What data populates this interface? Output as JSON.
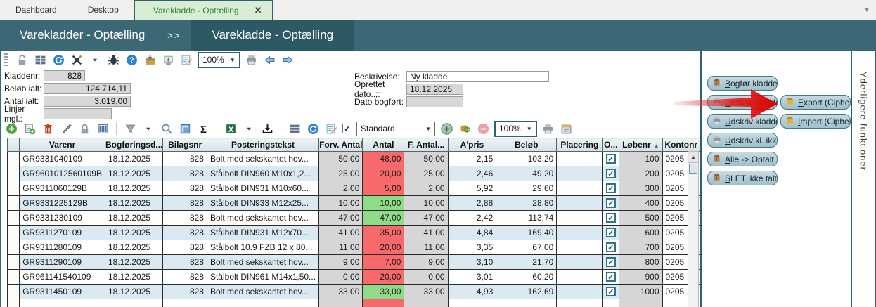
{
  "tabs": [
    {
      "label": "Dashboard",
      "active": false
    },
    {
      "label": "Desktop",
      "active": false
    },
    {
      "label": "Varekladde - Optælling",
      "active": true,
      "close_label": "✕"
    }
  ],
  "breadcrumb": {
    "items": [
      "Varekladder - Optælling",
      "Varekladde - Optælling"
    ],
    "separator": ">>"
  },
  "toolbar_top": {
    "icons": [
      "unlock-icon",
      "table-icon",
      "refresh-icon",
      "tools-icon",
      "dropdown-caret-icon",
      "bug-icon",
      "help-icon",
      "archive-icon",
      "snapshot-icon",
      "edit-notes-icon"
    ],
    "zoom_value": "100%",
    "icons_after": [
      "print-icon",
      "nav-back-icon",
      "nav-forward-icon"
    ]
  },
  "form": {
    "left": [
      {
        "label": "Kladdenr:",
        "value": "828"
      },
      {
        "label": "Beløb ialt:",
        "value": "124.714,11"
      },
      {
        "label": "Antal ialt:",
        "value": "3.019,00"
      },
      {
        "label": "Linjer mgl.:",
        "value": ""
      }
    ],
    "right": [
      {
        "label": "Beskrivelse:",
        "value": "Ny kladde"
      },
      {
        "label": "Oprettet dato..;:",
        "value": "18.12.2025"
      },
      {
        "label": "Dato bogført:",
        "value": ""
      }
    ]
  },
  "toolbar_grid": {
    "icons_group1": [
      "add-icon",
      "copy-row-icon",
      "delete-icon",
      "edit-pen-icon",
      "lock-icon",
      "columns-icon"
    ],
    "icons_group2": [
      "filter-icon",
      "dropdown-caret-icon",
      "search-icon",
      "select-area-icon",
      "sum-icon"
    ],
    "icons_group3": [
      "excel-icon",
      "dropdown-caret-icon",
      "export-tray-icon"
    ],
    "icons_group4": [
      "table-icon",
      "refresh-icon",
      "edit-notes-icon"
    ],
    "checkbox_checked": "✓",
    "layout_preset": "Standard",
    "icons_group5": [
      "add-circle-icon",
      "db-refresh-icon",
      "remove-circle-icon"
    ],
    "zoom_value": "100%",
    "icons_group6": [
      "print-icon",
      "calendar-icon"
    ]
  },
  "table": {
    "columns": [
      {
        "key": "sel",
        "label": "",
        "type": "indic",
        "align": "ac"
      },
      {
        "key": "varenr",
        "label": "Varenr",
        "type": "stripe",
        "align": "al"
      },
      {
        "key": "dato",
        "label": "Bogføringsd...",
        "type": "stripe",
        "align": "al"
      },
      {
        "key": "bilagsnr",
        "label": "Bilagsnr",
        "type": "stripe",
        "align": "ar"
      },
      {
        "key": "tekst",
        "label": "Posteringstekst",
        "type": "stripe",
        "align": "al"
      },
      {
        "key": "forv",
        "label": "Forv. Antal",
        "type": "gray",
        "align": "ar"
      },
      {
        "key": "antal",
        "label": "Antal",
        "type": "antal",
        "align": "ar"
      },
      {
        "key": "fantal",
        "label": "F. Antal...",
        "type": "gray",
        "align": "ar"
      },
      {
        "key": "apris",
        "label": "A'pris",
        "type": "stripe",
        "align": "ar"
      },
      {
        "key": "belob",
        "label": "Beløb",
        "type": "stripe",
        "align": "ar"
      },
      {
        "key": "placering",
        "label": "Placering",
        "type": "stripe",
        "align": "al"
      },
      {
        "key": "opt",
        "label": "O...",
        "type": "check",
        "align": "ac"
      },
      {
        "key": "lobenr",
        "label": "Løbenr",
        "type": "gray",
        "align": "ar",
        "sorted": "asc"
      },
      {
        "key": "kontonr",
        "label": "Kontonr",
        "type": "white",
        "align": "al"
      }
    ],
    "sort_glyph": "▲",
    "check_glyph": "✓",
    "rows": [
      {
        "varenr": "GR9331040109",
        "dato": "18.12.2025",
        "bilagsnr": "828",
        "tekst": "Bolt med sekskantet hov...",
        "forv": "50,00",
        "antal": "48,00",
        "state": "mismatch",
        "fantal": "50,00",
        "apris": "2,15",
        "belob": "103,20",
        "placering": "",
        "opt": true,
        "lobenr": "100",
        "kontonr": "0205"
      },
      {
        "varenr": "GR9601012560109B",
        "dato": "18.12.2025",
        "bilagsnr": "828",
        "tekst": "Stålbolt DIN960 M10x1,2...",
        "forv": "25,00",
        "antal": "20,00",
        "state": "mismatch",
        "fantal": "25,00",
        "apris": "2,46",
        "belob": "49,20",
        "placering": "",
        "opt": true,
        "lobenr": "200",
        "kontonr": "0205"
      },
      {
        "varenr": "GR9311060129B",
        "dato": "18.12.2025",
        "bilagsnr": "828",
        "tekst": "Stålbolt DIN931 M10x60...",
        "forv": "2,00",
        "antal": "5,00",
        "state": "mismatch",
        "fantal": "2,00",
        "apris": "5,92",
        "belob": "29,60",
        "placering": "",
        "opt": true,
        "lobenr": "300",
        "kontonr": "0205"
      },
      {
        "varenr": "GR9331225129B",
        "dato": "18.12.2025",
        "bilagsnr": "828",
        "tekst": "Stålbolt DIN933 M12x25...",
        "forv": "10,00",
        "antal": "10,00",
        "state": "match",
        "fantal": "10,00",
        "apris": "2,88",
        "belob": "28,80",
        "placering": "",
        "opt": true,
        "lobenr": "400",
        "kontonr": "0205"
      },
      {
        "varenr": "GR9331230109",
        "dato": "18.12.2025",
        "bilagsnr": "828",
        "tekst": "Bolt med sekskantet hov...",
        "forv": "47,00",
        "antal": "47,00",
        "state": "match",
        "fantal": "47,00",
        "apris": "2,42",
        "belob": "113,74",
        "placering": "",
        "opt": true,
        "lobenr": "500",
        "kontonr": "0205"
      },
      {
        "varenr": "GR9311270109",
        "dato": "18.12.2025",
        "bilagsnr": "828",
        "tekst": "Stålbolt DIN931 M12x70...",
        "forv": "41,00",
        "antal": "35,00",
        "state": "mismatch",
        "fantal": "41,00",
        "apris": "4,84",
        "belob": "169,40",
        "placering": "",
        "opt": true,
        "lobenr": "600",
        "kontonr": "0205"
      },
      {
        "varenr": "GR9311280109",
        "dato": "18.12.2025",
        "bilagsnr": "828",
        "tekst": "Stålbolt 10.9 FZB 12 x 80...",
        "forv": "11,00",
        "antal": "20,00",
        "state": "mismatch",
        "fantal": "11,00",
        "apris": "3,35",
        "belob": "67,00",
        "placering": "",
        "opt": true,
        "lobenr": "700",
        "kontonr": "0205"
      },
      {
        "varenr": "GR9311290109",
        "dato": "18.12.2025",
        "bilagsnr": "828",
        "tekst": "Bolt med sekskantet hov...",
        "forv": "9,00",
        "antal": "7,00",
        "state": "mismatch",
        "fantal": "9,00",
        "apris": "3,10",
        "belob": "21,70",
        "placering": "",
        "opt": true,
        "lobenr": "800",
        "kontonr": "0205"
      },
      {
        "varenr": "GR961141540109",
        "dato": "18.12.2025",
        "bilagsnr": "828",
        "tekst": "Stålbolt DIN961 M14x1,50...",
        "forv": "0,00",
        "antal": "20,00",
        "state": "mismatch",
        "fantal": "0,00",
        "apris": "3,01",
        "belob": "60,20",
        "placering": "",
        "opt": true,
        "lobenr": "900",
        "kontonr": "0205"
      },
      {
        "varenr": "GR9311450109",
        "dato": "18.12.2025",
        "bilagsnr": "828",
        "tekst": "Bolt med sekskantet hov...",
        "forv": "33,00",
        "antal": "33,00",
        "state": "match",
        "fantal": "33,00",
        "apris": "4,93",
        "belob": "162,69",
        "placering": "",
        "opt": true,
        "lobenr": "1000",
        "kontonr": "0205"
      },
      {
        "varenr": "",
        "dato": "",
        "bilagsnr": "",
        "tekst": "",
        "forv": "",
        "antal": "",
        "state": "mismatch",
        "fantal": "",
        "apris": "",
        "belob": "",
        "placering": "",
        "opt": null,
        "lobenr": "",
        "kontonr": "",
        "partial": true
      }
    ]
  },
  "status_colors": {
    "mismatch": "#f8696b",
    "match": "#8edc88"
  },
  "side_panel": {
    "title": "Yderligere funktioner",
    "buttons_col1": [
      {
        "label": "Bogfør kladde",
        "icon": "box-icon"
      },
      {
        "label": "Udskriv kladde",
        "icon": "printer-icon"
      },
      {
        "label": "Udskriv kladde g",
        "icon": "printer-icon"
      },
      {
        "label": "Udskriv kl. ikke g",
        "icon": "printer-icon"
      },
      {
        "label": "Alle -> Optalt",
        "icon": "box-icon"
      },
      {
        "label": "SLET ikke talte li",
        "icon": "box-icon"
      }
    ],
    "buttons_col2": [
      {
        "label": "Export (CipherLa",
        "icon": "gold-box-icon"
      },
      {
        "label": "Import (CipherLa",
        "icon": "gold-box-icon"
      }
    ]
  },
  "annotation": {
    "type": "red-arrow",
    "points_to": "Export (CipherLa"
  }
}
